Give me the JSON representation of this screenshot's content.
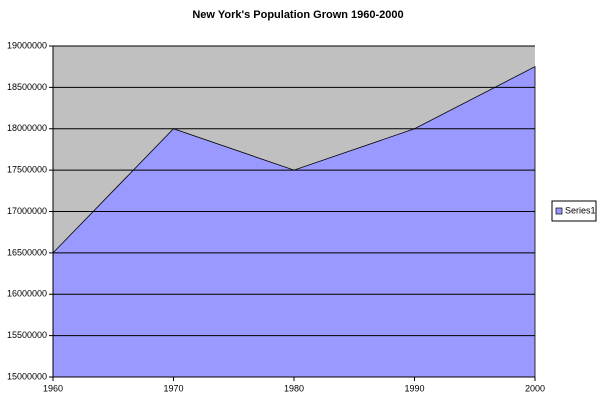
{
  "chart_data": {
    "type": "area",
    "title": "New York's Population Grown 1960-2000",
    "categories": [
      "1960",
      "1970",
      "1980",
      "1990",
      "2000"
    ],
    "series": [
      {
        "name": "Series1",
        "color": "#9999ff",
        "values": [
          16500000,
          18000000,
          17500000,
          18000000,
          18750000
        ]
      }
    ],
    "ylim": [
      15000000,
      19000000
    ],
    "yticks": [
      15000000,
      15500000,
      16000000,
      16500000,
      17000000,
      17500000,
      18000000,
      18500000,
      19000000
    ],
    "grid": true,
    "plot_background": "#c0c0c0",
    "legend": "right"
  }
}
